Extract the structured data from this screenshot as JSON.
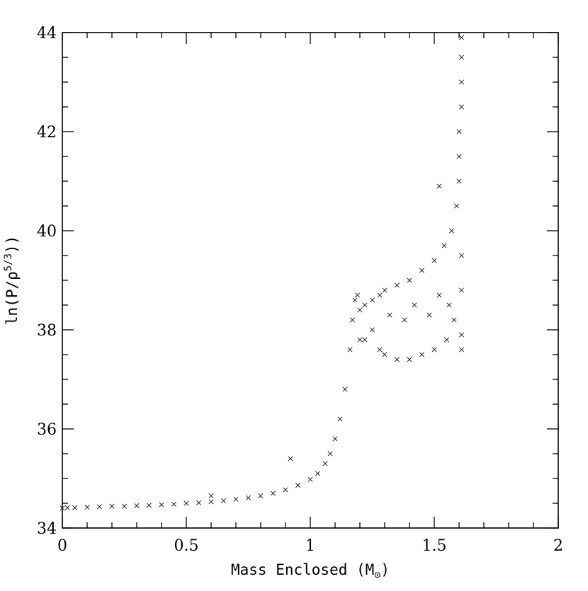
{
  "chart_data": {
    "type": "scatter",
    "title": "",
    "xlabel_main": "Mass Enclosed (M",
    "xlabel_sub": "⊙",
    "xlabel_close": ")",
    "ylabel_main": "ln(P/ρ",
    "ylabel_sup": "5/3",
    "ylabel_close": "))",
    "xlim": [
      0,
      2
    ],
    "ylim": [
      34,
      44
    ],
    "xticks": [
      "0",
      "0.5",
      "1",
      "1.5",
      "2"
    ],
    "yticks": [
      "34",
      "36",
      "38",
      "40",
      "42",
      "44"
    ],
    "marker": "x",
    "grid": false,
    "legend": false,
    "series": [
      {
        "points": [
          [
            0.0,
            34.4
          ],
          [
            0.02,
            34.41
          ],
          [
            0.05,
            34.41
          ],
          [
            0.1,
            34.42
          ],
          [
            0.15,
            34.43
          ],
          [
            0.2,
            34.44
          ],
          [
            0.25,
            34.44
          ],
          [
            0.3,
            34.45
          ],
          [
            0.35,
            34.46
          ],
          [
            0.4,
            34.47
          ],
          [
            0.45,
            34.48
          ],
          [
            0.5,
            34.5
          ],
          [
            0.55,
            34.51
          ],
          [
            0.6,
            34.53
          ],
          [
            0.65,
            34.55
          ],
          [
            0.7,
            34.58
          ],
          [
            0.75,
            34.61
          ],
          [
            0.8,
            34.65
          ],
          [
            0.85,
            34.7
          ],
          [
            0.9,
            34.77
          ],
          [
            0.95,
            34.86
          ],
          [
            1.0,
            34.98
          ],
          [
            1.03,
            35.1
          ],
          [
            1.06,
            35.3
          ],
          [
            1.08,
            35.5
          ],
          [
            1.1,
            35.8
          ],
          [
            1.12,
            36.2
          ],
          [
            1.14,
            36.8
          ],
          [
            1.16,
            37.6
          ],
          [
            1.17,
            38.2
          ],
          [
            1.18,
            38.6
          ],
          [
            1.19,
            38.7
          ],
          [
            1.2,
            38.4
          ],
          [
            1.2,
            37.8
          ],
          [
            1.22,
            38.5
          ],
          [
            1.22,
            37.8
          ],
          [
            1.25,
            38.6
          ],
          [
            1.25,
            38.0
          ],
          [
            1.28,
            38.7
          ],
          [
            1.28,
            37.6
          ],
          [
            1.3,
            38.8
          ],
          [
            1.3,
            37.5
          ],
          [
            1.32,
            38.3
          ],
          [
            1.35,
            38.9
          ],
          [
            1.35,
            37.4
          ],
          [
            1.38,
            38.2
          ],
          [
            1.4,
            39.0
          ],
          [
            1.4,
            37.4
          ],
          [
            1.42,
            38.5
          ],
          [
            1.45,
            39.2
          ],
          [
            1.45,
            37.5
          ],
          [
            1.48,
            38.3
          ],
          [
            1.5,
            39.4
          ],
          [
            1.5,
            37.6
          ],
          [
            1.52,
            38.7
          ],
          [
            1.54,
            39.7
          ],
          [
            1.55,
            37.8
          ],
          [
            1.56,
            38.5
          ],
          [
            1.57,
            40.0
          ],
          [
            1.58,
            38.2
          ],
          [
            1.59,
            40.5
          ],
          [
            1.6,
            41.0
          ],
          [
            1.6,
            41.5
          ],
          [
            1.6,
            42.0
          ],
          [
            1.61,
            42.5
          ],
          [
            1.61,
            43.0
          ],
          [
            1.61,
            43.5
          ],
          [
            1.61,
            43.9
          ],
          [
            1.61,
            39.5
          ],
          [
            1.61,
            38.8
          ],
          [
            1.61,
            37.9
          ],
          [
            1.61,
            37.6
          ],
          [
            0.92,
            35.4
          ],
          [
            1.52,
            40.9
          ],
          [
            0.6,
            34.65
          ]
        ]
      }
    ]
  }
}
